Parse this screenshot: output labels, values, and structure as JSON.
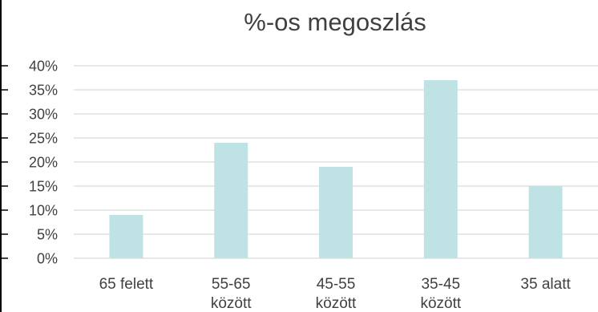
{
  "chart_data": {
    "type": "bar",
    "title": "%-os megoszlás",
    "categories": [
      [
        "65 felett"
      ],
      [
        "55-65",
        "között"
      ],
      [
        "45-55",
        "között"
      ],
      [
        "35-45",
        "között"
      ],
      [
        "35 alatt"
      ]
    ],
    "values": [
      9,
      24,
      19,
      37,
      15
    ],
    "y_ticks": [
      "0%",
      "5%",
      "10%",
      "15%",
      "20%",
      "25%",
      "30%",
      "35%",
      "40%"
    ],
    "ylim": [
      0,
      40
    ],
    "grid": true,
    "colors": {
      "bar": "#bfe2e4",
      "grid": "#d9d9d9",
      "text": "#404040",
      "title": "#404040"
    }
  }
}
